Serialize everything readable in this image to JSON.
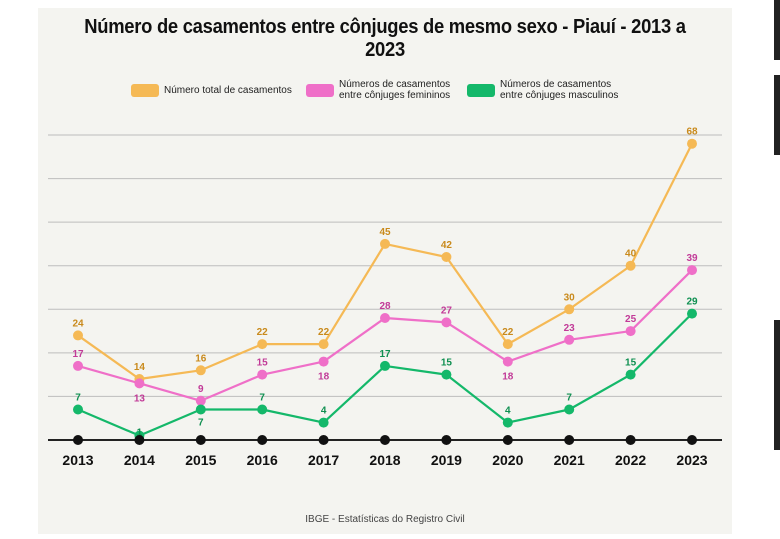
{
  "chart_data": {
    "type": "line",
    "title": "Número de casamentos entre cônjuges de mesmo sexo - Piauí - 2013 a 2023",
    "categories": [
      "2013",
      "2014",
      "2015",
      "2016",
      "2017",
      "2018",
      "2019",
      "2020",
      "2021",
      "2022",
      "2023"
    ],
    "series": [
      {
        "name": "Número total de casamentos",
        "color": "#f5b955",
        "label_color": "#c98a1c",
        "values": [
          24,
          14,
          16,
          22,
          22,
          45,
          42,
          22,
          30,
          40,
          68
        ]
      },
      {
        "name": "Números de casamentos\nentre cônjuges femininos",
        "color": "#ef6fc8",
        "label_color": "#c23b98",
        "values": [
          17,
          13,
          9,
          15,
          18,
          28,
          27,
          18,
          23,
          25,
          39
        ]
      },
      {
        "name": "Números de casamentos\nentre cônjuges masculinos",
        "color": "#14b86a",
        "label_color": "#0e8f50",
        "values": [
          7,
          1,
          7,
          7,
          4,
          17,
          15,
          4,
          7,
          15,
          29
        ]
      }
    ],
    "xlabel": "",
    "ylabel": "",
    "ylim": [
      0,
      70
    ],
    "grid": true,
    "legend_position": "top",
    "source": "IBGE - Estatísticas do Registro Civil"
  }
}
